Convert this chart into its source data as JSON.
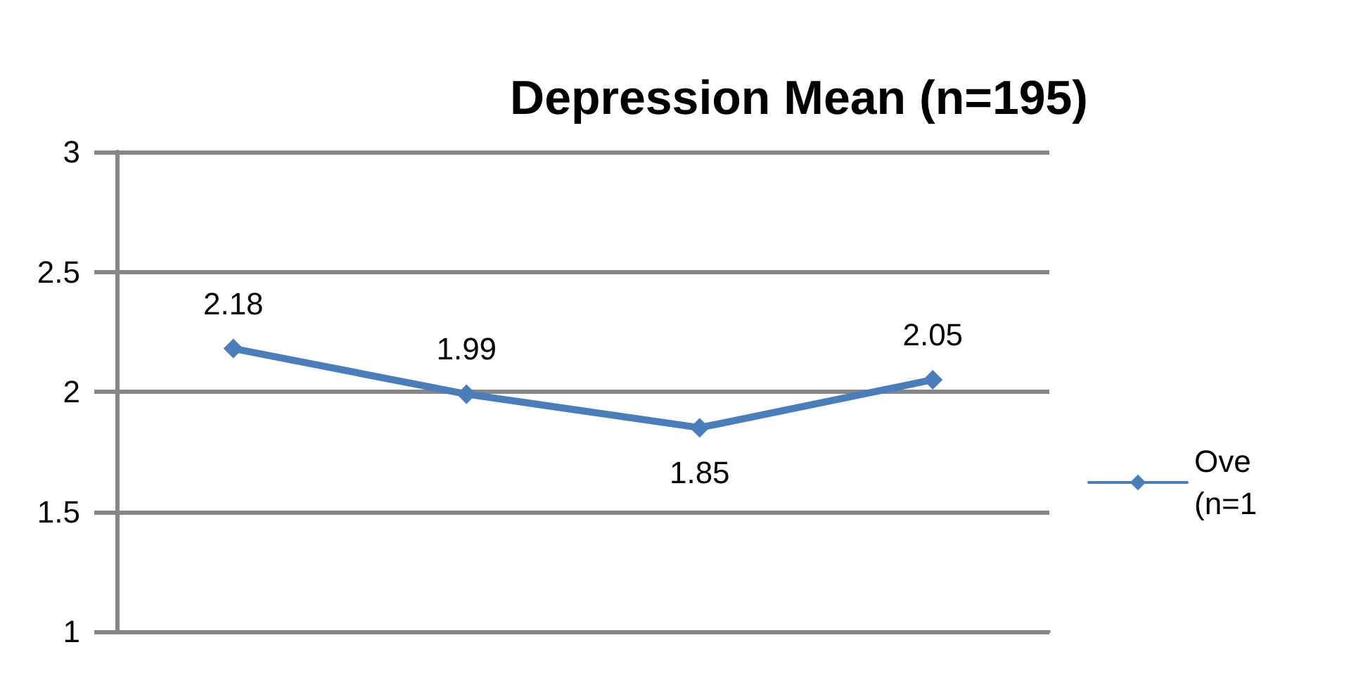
{
  "chart_data": {
    "type": "line",
    "title": "Depression Mean (n=195)",
    "categories": [
      null,
      null,
      null,
      null
    ],
    "series": [
      {
        "name": "Ove\n(n=1",
        "color": "#4a7ebb",
        "values": [
          2.18,
          1.99,
          1.85,
          2.05
        ]
      }
    ],
    "ylim": [
      1,
      3
    ],
    "yticks": [
      1,
      1.5,
      2,
      2.5,
      3
    ],
    "grid": "y",
    "legend": "right",
    "marker": "diamond",
    "data_labels": true
  }
}
